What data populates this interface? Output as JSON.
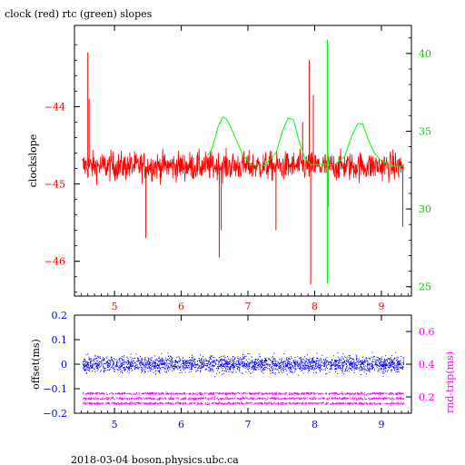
{
  "chart_data": [
    {
      "type": "line",
      "title": "clock (red) rtc (green) slopes",
      "ylabel": "clockslope",
      "xlim": [
        4.4,
        9.45
      ],
      "ylim": [
        -46.45,
        -42.95
      ],
      "x_ticks": [
        5,
        6,
        7,
        8,
        9
      ],
      "y_ticks": [
        -44,
        -45,
        -46
      ],
      "y2lim": [
        24.4,
        41.8
      ],
      "y2_ticks": [
        40,
        35,
        30,
        25
      ],
      "series": [
        {
          "name": "clock",
          "color": "#ff0000",
          "axis": "left",
          "baseline": -44.77,
          "x_range": [
            4.52,
            9.33
          ],
          "spikes": [
            {
              "x": 4.6,
              "y": -43.3
            },
            {
              "x": 4.62,
              "y": -43.9
            },
            {
              "x": 5.47,
              "y": -45.7
            },
            {
              "x": 6.57,
              "y": -45.95
            },
            {
              "x": 6.6,
              "y": -45.6
            },
            {
              "x": 7.42,
              "y": -45.6
            },
            {
              "x": 7.82,
              "y": -44.2
            },
            {
              "x": 7.92,
              "y": -43.4
            },
            {
              "x": 7.94,
              "y": -46.3
            },
            {
              "x": 7.98,
              "y": -43.85
            },
            {
              "x": 8.2,
              "y": -45.3
            },
            {
              "x": 9.32,
              "y": -45.55
            }
          ]
        },
        {
          "name": "rtc",
          "color": "#00ff00",
          "axis": "right",
          "points": [
            [
              6.4,
              33.4
            ],
            [
              6.47,
              34.0
            ],
            [
              6.55,
              35.2
            ],
            [
              6.62,
              35.9
            ],
            [
              6.68,
              35.7
            ],
            [
              6.74,
              35.2
            ],
            [
              6.82,
              34.4
            ],
            [
              6.92,
              33.6
            ],
            [
              7.05,
              32.9
            ],
            [
              7.25,
              32.8
            ],
            [
              7.42,
              33.6
            ],
            [
              7.52,
              35.0
            ],
            [
              7.6,
              35.8
            ],
            [
              7.68,
              35.6
            ],
            [
              7.75,
              34.6
            ],
            [
              7.85,
              33.3
            ],
            [
              7.95,
              32.8
            ],
            [
              8.1,
              32.8
            ],
            [
              8.3,
              32.9
            ],
            [
              8.45,
              33.4
            ],
            [
              8.55,
              34.6
            ],
            [
              8.65,
              35.6
            ],
            [
              8.72,
              35.5
            ],
            [
              8.8,
              34.6
            ],
            [
              8.9,
              33.6
            ],
            [
              9.0,
              33.0
            ],
            [
              9.2,
              32.8
            ],
            [
              9.33,
              32.8
            ]
          ],
          "spike": {
            "x": 8.19,
            "top": 40.9,
            "bottom": 25.2
          }
        }
      ]
    },
    {
      "type": "scatter",
      "ylabel": "offset(ms)",
      "y2label": "rnd-trip(ms)",
      "xlim": [
        4.4,
        9.45
      ],
      "ylim": [
        -0.2,
        0.2
      ],
      "x_ticks": [
        5,
        6,
        7,
        8,
        9
      ],
      "y_ticks": [
        "0.2",
        "0.1",
        "0",
        "-0.1",
        "-0.2"
      ],
      "y2lim": [
        0.1,
        0.7
      ],
      "y2_ticks": [
        "0.6",
        "0.4",
        "0.2"
      ],
      "series": [
        {
          "name": "offset",
          "color": "#0000ff",
          "axis": "left",
          "center": 0.0,
          "spread": 0.04,
          "x_range": [
            4.52,
            9.33
          ]
        },
        {
          "name": "rnd-trip",
          "color": "#ff00ff",
          "axis": "right",
          "bands": [
            0.22,
            0.19,
            0.16
          ],
          "x_range": [
            4.52,
            9.33
          ]
        }
      ]
    }
  ],
  "footer": "2018-03-04  boson.physics.ubc.ca"
}
